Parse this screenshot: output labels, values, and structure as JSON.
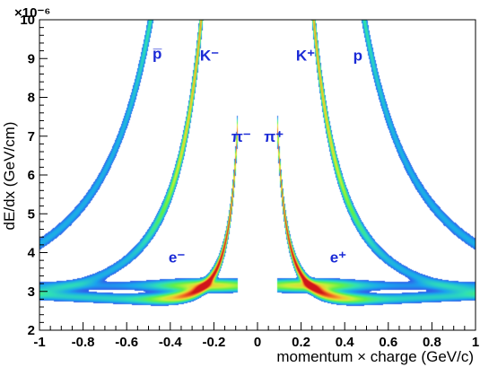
{
  "chart_data": {
    "type": "heatmap",
    "title": "",
    "xlabel": "momentum × charge (GeV/c)",
    "ylabel": "dE/dx (GeV/cm)",
    "y_exponent": "×10⁻⁶",
    "xlim": [
      -1,
      1
    ],
    "ylim": [
      2,
      10
    ],
    "x_ticks": [
      "-1",
      "-0.8",
      "-0.6",
      "-0.4",
      "-0.2",
      "0",
      "0.2",
      "0.4",
      "0.6",
      "0.8",
      "1"
    ],
    "x_tick_values": [
      -1,
      -0.8,
      -0.6,
      -0.4,
      -0.2,
      0,
      0.2,
      0.4,
      0.6,
      0.8,
      1
    ],
    "y_ticks": [
      "2",
      "3",
      "4",
      "5",
      "6",
      "7",
      "8",
      "9",
      "10"
    ],
    "y_tick_values": [
      2,
      3,
      4,
      5,
      6,
      7,
      8,
      9,
      10
    ],
    "grid": false,
    "colormap": [
      "#7a1fd8",
      "#3a3ce8",
      "#1aa4ee",
      "#2fe0b6",
      "#60f04a",
      "#c8f03a",
      "#f3c631",
      "#f06b22",
      "#d0151a"
    ],
    "labels": [
      {
        "text": "p̅",
        "x": -0.46,
        "y": 9.0
      },
      {
        "text": "K⁻",
        "x": -0.22,
        "y": 8.95
      },
      {
        "text": "K⁺",
        "x": 0.22,
        "y": 8.95
      },
      {
        "text": "p",
        "x": 0.46,
        "y": 8.95
      },
      {
        "text": "π⁻",
        "x": -0.075,
        "y": 6.85
      },
      {
        "text": "π⁺",
        "x": 0.075,
        "y": 6.85
      },
      {
        "text": "e⁻",
        "x": -0.37,
        "y": 3.75
      },
      {
        "text": "e⁺",
        "x": 0.37,
        "y": 3.75
      }
    ],
    "bands": [
      {
        "name": "p",
        "mass": 0.938,
        "scale": 2.1,
        "strength": 1.0
      },
      {
        "name": "K",
        "mass": 0.494,
        "scale": 2.1,
        "strength": 1.0
      },
      {
        "name": "pi",
        "mass": 0.1396,
        "scale": 2.1,
        "strength": 1.5
      },
      {
        "name": "e",
        "mass": 0.000511,
        "scale": 3.15,
        "strength": 0.7
      }
    ]
  }
}
